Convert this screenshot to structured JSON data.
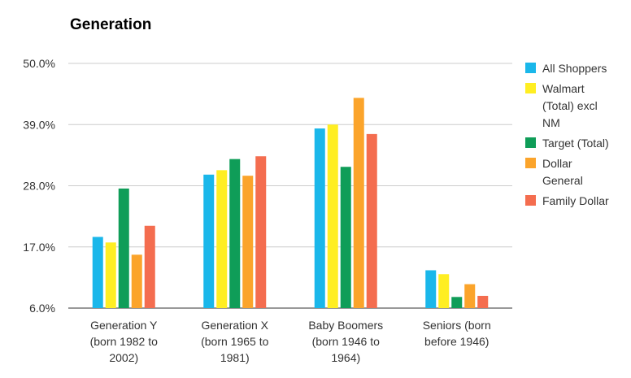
{
  "chart_data": {
    "type": "bar",
    "title": "Generation",
    "xlabel": "",
    "ylabel": "",
    "ylim": [
      6,
      50
    ],
    "y_ticks": [
      "6.0%",
      "17.0%",
      "28.0%",
      "39.0%",
      "50.0%"
    ],
    "y_tick_values": [
      6,
      17,
      28,
      39,
      50
    ],
    "grid": true,
    "legend_position": "right",
    "categories": [
      [
        "Generation Y",
        "(born 1982 to",
        "2002)"
      ],
      [
        "Generation X",
        "(born 1965 to",
        "1981)"
      ],
      [
        "Baby Boomers",
        "(born 1946 to",
        "1964)"
      ],
      [
        "Seniors (born",
        "before 1946)"
      ]
    ],
    "series": [
      {
        "name": "All Shoppers",
        "legend_lines": [
          "All Shoppers"
        ],
        "color": "#1ab7ea",
        "values": [
          18.8,
          30.0,
          38.3,
          12.8
        ]
      },
      {
        "name": "Walmart (Total) excl NM",
        "legend_lines": [
          "Walmart",
          "(Total) excl",
          "NM"
        ],
        "color": "#ffee22",
        "values": [
          17.8,
          30.8,
          39.0,
          12.1
        ]
      },
      {
        "name": "Target (Total)",
        "legend_lines": [
          "Target (Total)"
        ],
        "color": "#0f9d58",
        "values": [
          27.5,
          32.8,
          31.4,
          8.0
        ]
      },
      {
        "name": "Dollar General",
        "legend_lines": [
          "Dollar",
          "General"
        ],
        "color": "#fba42b",
        "values": [
          15.6,
          29.8,
          43.8,
          10.3
        ]
      },
      {
        "name": "Family Dollar",
        "legend_lines": [
          "Family Dollar"
        ],
        "color": "#f46d4f",
        "values": [
          20.8,
          33.3,
          37.3,
          8.2
        ]
      }
    ]
  }
}
